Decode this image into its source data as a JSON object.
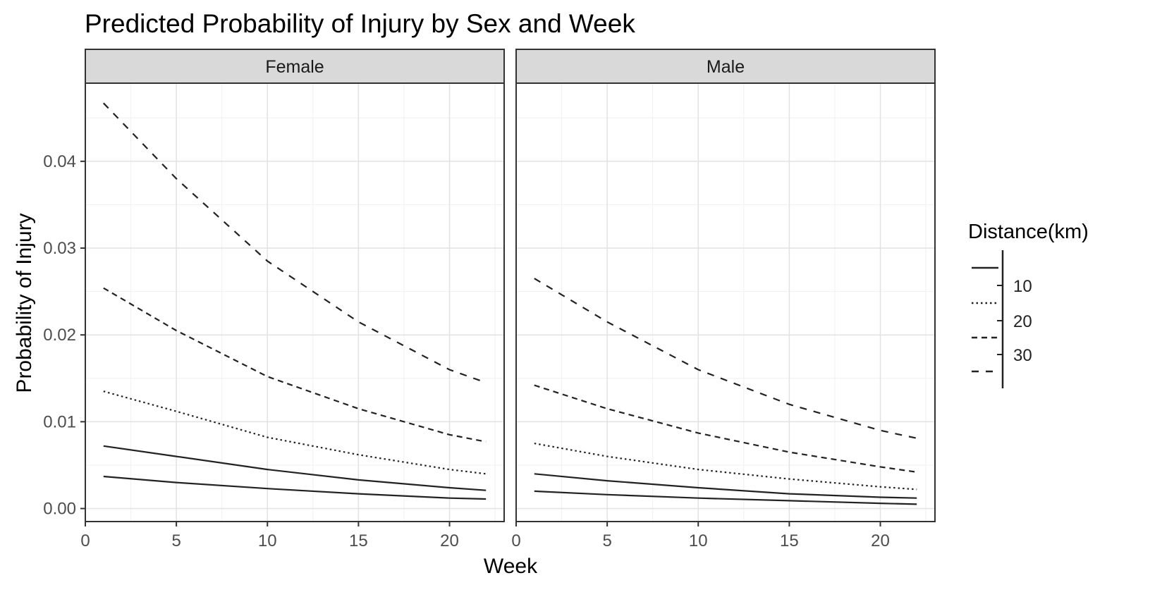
{
  "chart_data": {
    "type": "line",
    "title": "Predicted Probability of Injury by Sex and Week",
    "xlabel": "Week",
    "ylabel": "Probability of Injury",
    "xlim": [
      0,
      23
    ],
    "ylim": [
      -0.0015,
      0.049
    ],
    "x_ticks": [
      0,
      5,
      10,
      15,
      20
    ],
    "y_ticks": [
      0.0,
      0.01,
      0.02,
      0.03,
      0.04
    ],
    "y_tick_labels": [
      "0.00",
      "0.01",
      "0.02",
      "0.03",
      "0.04"
    ],
    "grid": true,
    "legend": {
      "title": "Distance(km)",
      "position": "right",
      "labels": [
        "10",
        "20",
        "30"
      ]
    },
    "panels": [
      {
        "strip": "Female",
        "series": [
          {
            "linetype": "solid",
            "x": [
              1,
              5,
              10,
              15,
              20,
              22
            ],
            "values": [
              0.0037,
              0.003,
              0.0023,
              0.0017,
              0.0012,
              0.0011
            ]
          },
          {
            "linetype": "solid",
            "x": [
              1,
              5,
              10,
              15,
              20,
              22
            ],
            "values": [
              0.0072,
              0.006,
              0.0045,
              0.0033,
              0.0024,
              0.0021
            ]
          },
          {
            "linetype": "dotted",
            "x": [
              1,
              5,
              10,
              15,
              20,
              22
            ],
            "values": [
              0.0135,
              0.0112,
              0.0082,
              0.0062,
              0.0045,
              0.004
            ]
          },
          {
            "linetype": "dashed-short",
            "x": [
              1,
              5,
              10,
              15,
              20,
              22
            ],
            "values": [
              0.0254,
              0.0205,
              0.0152,
              0.0115,
              0.0085,
              0.0077
            ]
          },
          {
            "linetype": "dashed-long",
            "x": [
              1,
              5,
              10,
              15,
              20,
              22
            ],
            "values": [
              0.0467,
              0.038,
              0.0285,
              0.0215,
              0.016,
              0.0145
            ]
          }
        ]
      },
      {
        "strip": "Male",
        "series": [
          {
            "linetype": "solid",
            "x": [
              1,
              5,
              10,
              15,
              20,
              22
            ],
            "values": [
              0.002,
              0.0016,
              0.0012,
              0.0009,
              0.0006,
              0.0005
            ]
          },
          {
            "linetype": "solid",
            "x": [
              1,
              5,
              10,
              15,
              20,
              22
            ],
            "values": [
              0.004,
              0.0032,
              0.0024,
              0.0017,
              0.0013,
              0.0012
            ]
          },
          {
            "linetype": "dotted",
            "x": [
              1,
              5,
              10,
              15,
              20,
              22
            ],
            "values": [
              0.0075,
              0.006,
              0.0045,
              0.0034,
              0.0025,
              0.0022
            ]
          },
          {
            "linetype": "dashed-short",
            "x": [
              1,
              5,
              10,
              15,
              20,
              22
            ],
            "values": [
              0.0142,
              0.0115,
              0.0087,
              0.0065,
              0.0048,
              0.0042
            ]
          },
          {
            "linetype": "dashed-long",
            "x": [
              1,
              5,
              10,
              15,
              20,
              22
            ],
            "values": [
              0.0265,
              0.0215,
              0.016,
              0.012,
              0.009,
              0.0081
            ]
          }
        ]
      }
    ]
  }
}
